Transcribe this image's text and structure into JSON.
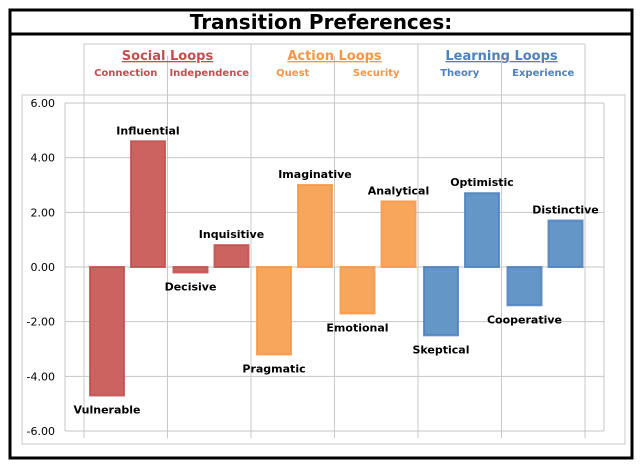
{
  "chart_data": {
    "type": "bar",
    "title": "Transition Preferences:",
    "ylim": [
      -6,
      6
    ],
    "yticks": [
      "6.00",
      "4.00",
      "2.00",
      "0.00",
      "-2.00",
      "-4.00",
      "-6.00"
    ],
    "yticks_values": [
      6,
      4,
      2,
      0,
      -2,
      -4,
      -6
    ],
    "grid": true,
    "groups": [
      {
        "name": "Social Loops",
        "color": "#C0504D",
        "fill": "#CD6360",
        "subgroups": [
          "Connection",
          "Independence"
        ]
      },
      {
        "name": "Action Loops",
        "color": "#F79646",
        "fill": "#F7A65C",
        "subgroups": [
          "Quest",
          "Security"
        ]
      },
      {
        "name": "Learning Loops",
        "color": "#4F81BD",
        "fill": "#6496C8",
        "subgroups": [
          "Theory",
          "Experience"
        ]
      }
    ],
    "bars": [
      {
        "label": "Vulnerable",
        "value": -4.7,
        "group": 0
      },
      {
        "label": "Influential",
        "value": 4.6,
        "group": 0
      },
      {
        "label": "Decisive",
        "value": -0.2,
        "group": 0
      },
      {
        "label": "Inquisitive",
        "value": 0.8,
        "group": 0
      },
      {
        "label": "Pragmatic",
        "value": -3.2,
        "group": 1
      },
      {
        "label": "Imaginative",
        "value": 3.0,
        "group": 1
      },
      {
        "label": "Emotional",
        "value": -1.7,
        "group": 1
      },
      {
        "label": "Analytical",
        "value": 2.4,
        "group": 1
      },
      {
        "label": "Skeptical",
        "value": -2.5,
        "group": 2
      },
      {
        "label": "Optimistic",
        "value": 2.7,
        "group": 2
      },
      {
        "label": "Cooperative",
        "value": -1.4,
        "group": 2
      },
      {
        "label": "Distinctive",
        "value": 1.7,
        "group": 2
      }
    ]
  }
}
